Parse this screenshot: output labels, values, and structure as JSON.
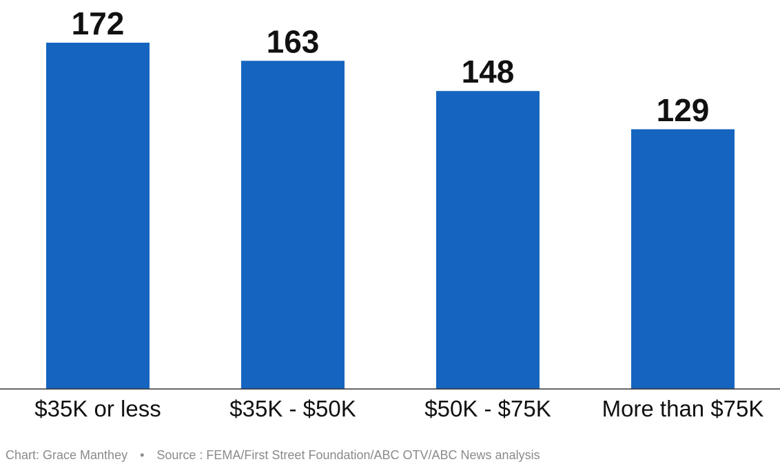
{
  "chart_data": {
    "type": "bar",
    "categories": [
      "$35K or less",
      "$35K - $50K",
      "$50K - $75K",
      "More than $75K"
    ],
    "values": [
      172,
      163,
      148,
      129
    ],
    "ylim": [
      0,
      172
    ],
    "grid": false,
    "colors": {
      "bar": "#1565C0",
      "text": "#111111",
      "axis": "#333333"
    }
  },
  "footer": {
    "chart_credit": "Chart: Grace Manthey",
    "separator": "•",
    "source": "Source : FEMA/First Street Foundation/ABC OTV/ABC News analysis"
  }
}
